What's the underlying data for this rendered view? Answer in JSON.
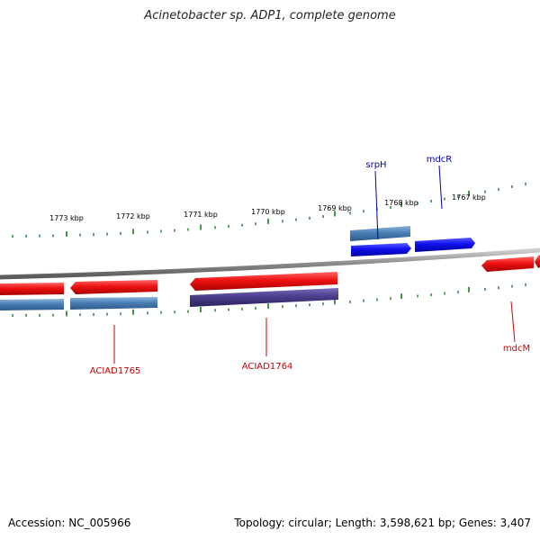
{
  "title": "Acinetobacter sp. ADP1, complete genome",
  "footer": {
    "accession": "Accession: NC_005966",
    "summary": "Topology: circular; Length: 3,598,621 bp; Genes: 3,407"
  },
  "ruler": {
    "labels": [
      "1773 kbp",
      "1772 kbp",
      "1771 kbp",
      "1770 kbp",
      "1769 kbp",
      "1768 kbp",
      "1767 kbp"
    ],
    "tick_color": "#1a7a1a"
  },
  "gene_labels": [
    {
      "name": "srpH",
      "color": "#0000aa"
    },
    {
      "name": "mdcR",
      "color": "#0000aa"
    },
    {
      "name": "ACIAD1765",
      "color": "#cc0000"
    },
    {
      "name": "ACIAD1764",
      "color": "#cc0000"
    },
    {
      "name": "mdcM",
      "color": "#cc0000"
    }
  ],
  "colors": {
    "forward_gene": "#1010ee",
    "reverse_gene": "#ee1111",
    "rna_feature": "#4a7fb5",
    "purple_feature": "#4b3d8a",
    "backbone": "#888888"
  }
}
